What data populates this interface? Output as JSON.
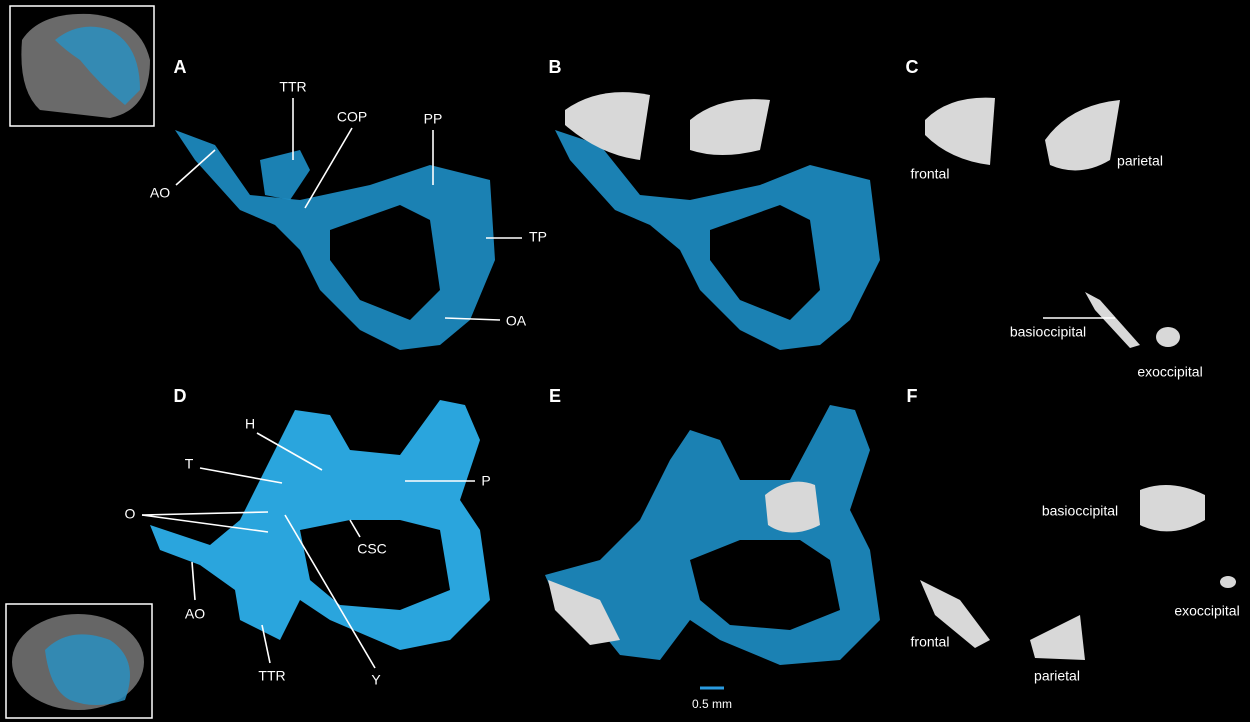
{
  "panels": [
    {
      "letter": "A",
      "labels": [
        "TTR",
        "COP",
        "PP",
        "AO",
        "TP",
        "OA"
      ]
    },
    {
      "letter": "B"
    },
    {
      "letter": "C",
      "labels": [
        "frontal",
        "parietal",
        "basioccipital",
        "exoccipital"
      ]
    },
    {
      "letter": "D",
      "labels": [
        "H",
        "T",
        "P",
        "O",
        "CSC",
        "AO",
        "TTR",
        "Y"
      ]
    },
    {
      "letter": "E"
    },
    {
      "letter": "F",
      "labels": [
        "basioccipital",
        "exoccipital",
        "frontal",
        "parietal"
      ]
    }
  ],
  "scale_bar": "0.5 mm"
}
